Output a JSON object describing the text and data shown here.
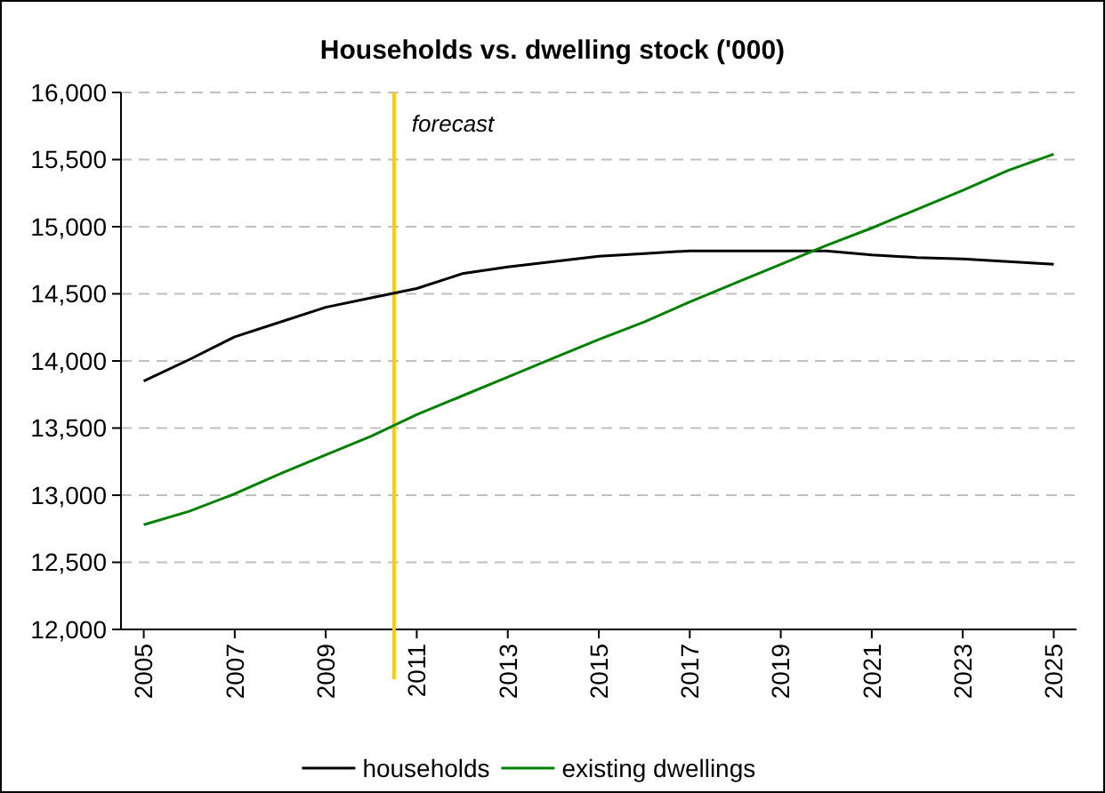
{
  "chart_data": {
    "type": "line",
    "title": "Households vs. dwelling stock ('000)",
    "x": [
      2005,
      2006,
      2007,
      2008,
      2009,
      2010,
      2011,
      2012,
      2013,
      2014,
      2015,
      2016,
      2017,
      2018,
      2019,
      2020,
      2021,
      2022,
      2023,
      2024,
      2025
    ],
    "series": [
      {
        "name": "households",
        "color": "#000000",
        "values": [
          13850,
          14010,
          14180,
          14290,
          14400,
          14470,
          14540,
          14650,
          14700,
          14740,
          14780,
          14800,
          14820,
          14820,
          14820,
          14820,
          14790,
          14770,
          14760,
          14740,
          14720
        ]
      },
      {
        "name": "existing dwellings",
        "color": "#008000",
        "values": [
          12780,
          12880,
          13010,
          13160,
          13300,
          13440,
          13600,
          13740,
          13880,
          14020,
          14160,
          14290,
          14440,
          14580,
          14720,
          14860,
          14990,
          15130,
          15270,
          15420,
          15540
        ]
      }
    ],
    "xlim": [
      2004.5,
      2025.5
    ],
    "xticks": [
      2005,
      2007,
      2009,
      2011,
      2013,
      2015,
      2017,
      2019,
      2021,
      2023,
      2025
    ],
    "ylim": [
      12000,
      16000
    ],
    "yticks": [
      {
        "value": 12000,
        "label": "12,000"
      },
      {
        "value": 12500,
        "label": "12,500"
      },
      {
        "value": 13000,
        "label": "13,000"
      },
      {
        "value": 13500,
        "label": "13,500"
      },
      {
        "value": 14000,
        "label": "14,000"
      },
      {
        "value": 14500,
        "label": "14,500"
      },
      {
        "value": 15000,
        "label": "15,000"
      },
      {
        "value": 15500,
        "label": "15,500"
      },
      {
        "value": 16000,
        "label": "16,000"
      }
    ],
    "grid": "y",
    "ref_lines": [
      {
        "axis": "x",
        "value": 2010.5,
        "label": "forecast",
        "color": "#ffcc00"
      }
    ],
    "legend": "bottom",
    "marker": "none",
    "line_style": "solid"
  }
}
